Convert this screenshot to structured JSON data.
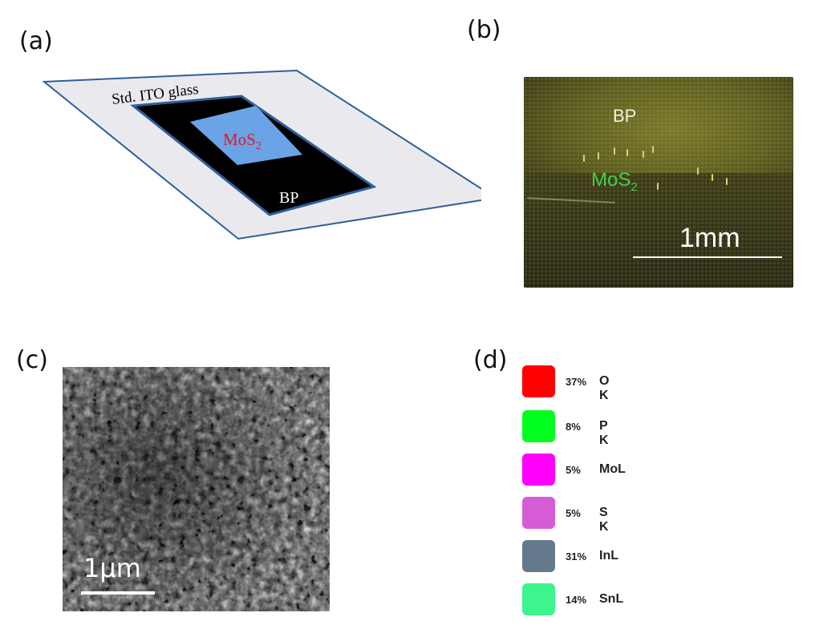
{
  "panels": {
    "a": {
      "label": "(a)",
      "substrate_label": "Std. ITO glass",
      "inner_label": "MoS",
      "inner_sub": "2",
      "outer_label": "BP"
    },
    "b": {
      "label": "(b)",
      "bp_label": "BP",
      "mos2_label": "MoS",
      "mos2_sub": "2",
      "scale": "1mm"
    },
    "c": {
      "label": "(c)",
      "scale": "1μm"
    },
    "d": {
      "label": "(d)",
      "legend": [
        {
          "pct": "37%",
          "element": "O K",
          "color": "#ff0000"
        },
        {
          "pct": "8%",
          "element": "P K",
          "color": "#00ff1e"
        },
        {
          "pct": "5%",
          "element": "MoL",
          "color": "#ff00ff"
        },
        {
          "pct": "5%",
          "element": "S K",
          "color": "#d65cd6"
        },
        {
          "pct": "31%",
          "element": "InL",
          "color": "#65798c"
        },
        {
          "pct": "14%",
          "element": "SnL",
          "color": "#3df58f"
        }
      ]
    }
  },
  "colors": {
    "ito_fill": "#eaeaee",
    "ito_stroke": "#2f5f9a",
    "bp_fill": "#000000",
    "mos2_fill": "#6aa3e6",
    "mos2_text": "#e0192a"
  }
}
